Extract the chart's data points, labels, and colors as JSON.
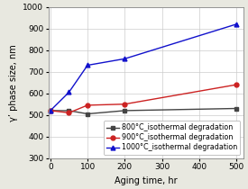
{
  "title": "",
  "xlabel": "Aging time, hr",
  "ylabel": "γ’ phase size, nm",
  "ylim": [
    300,
    1000
  ],
  "xlim": [
    -5,
    520
  ],
  "yticks": [
    300,
    400,
    500,
    600,
    700,
    800,
    900,
    1000
  ],
  "xticks": [
    0,
    100,
    200,
    300,
    400,
    500
  ],
  "series": [
    {
      "label": "800°C_isothermal degradation",
      "color": "#444444",
      "marker": "s",
      "x": [
        0,
        50,
        100,
        200,
        500
      ],
      "y": [
        520,
        520,
        505,
        520,
        530
      ]
    },
    {
      "label": "900°C_isothermal degradation",
      "color": "#cc2222",
      "marker": "o",
      "x": [
        0,
        50,
        100,
        200,
        500
      ],
      "y": [
        520,
        510,
        545,
        550,
        640
      ]
    },
    {
      "label": "1000°C_isothermal degradation",
      "color": "#1111cc",
      "marker": "^",
      "x": [
        0,
        50,
        100,
        200,
        500
      ],
      "y": [
        520,
        605,
        730,
        760,
        920
      ]
    }
  ],
  "legend_loc": "lower right",
  "grid": true,
  "fig_facecolor": "#e8e8e0",
  "axes_facecolor": "#ffffff",
  "title_fontsize": 9,
  "label_fontsize": 7,
  "tick_fontsize": 6.5,
  "legend_fontsize": 5.8,
  "linewidth": 1.0,
  "markersize": 3.5
}
